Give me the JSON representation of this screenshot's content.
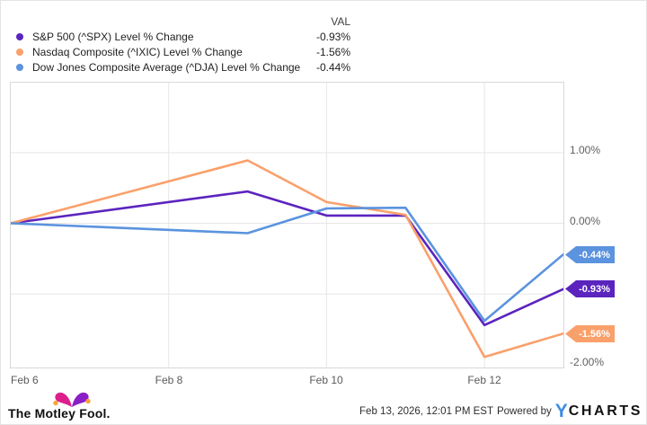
{
  "legend": {
    "val_header": "VAL",
    "series": [
      {
        "label": "S&P 500 (^SPX) Level % Change",
        "val": "-0.93%",
        "color": "#5B24BE"
      },
      {
        "label": "Nasdaq Composite (^IXIC) Level % Change",
        "val": "-1.56%",
        "color": "#FAA06B"
      },
      {
        "label": "Dow Jones Composite Average (^DJA) Level % Change",
        "val": "-0.44%",
        "color": "#5B93DE"
      }
    ]
  },
  "chart_data": {
    "type": "line",
    "title": "",
    "xlabel": "",
    "ylabel": "",
    "x": [
      "Feb 6",
      "Feb 9",
      "Feb 10",
      "Feb 11",
      "Feb 12",
      "Feb 13"
    ],
    "x_day_offsets": [
      0,
      3,
      4,
      5,
      6,
      7
    ],
    "x_total_days": 7,
    "series": [
      {
        "name": "S&P 500 (^SPX) Level % Change",
        "color": "#5B24BE",
        "values": [
          0,
          0.45,
          0.11,
          0.11,
          -1.44,
          -0.93
        ]
      },
      {
        "name": "Nasdaq Composite (^IXIC) Level % Change",
        "color": "#FAA06B",
        "values": [
          0,
          0.89,
          0.3,
          0.12,
          -1.89,
          -1.56
        ]
      },
      {
        "name": "Dow Jones Composite Average (^DJA) Level % Change",
        "color": "#5B93DE",
        "values": [
          0,
          -0.14,
          0.21,
          0.22,
          -1.38,
          -0.44
        ]
      }
    ],
    "ylim": [
      -2.04,
      1.99
    ],
    "grid": true,
    "legend_position": "top-left",
    "y_gridlines": [
      1,
      0,
      -1
    ],
    "y_tick_labels": [
      {
        "label": "1.00%",
        "value": 1
      },
      {
        "label": "0.00%",
        "value": 0
      },
      {
        "label": "-2.00%",
        "value": -2
      }
    ],
    "x_tick_labels": [
      {
        "label": "Feb 6",
        "day": 0
      },
      {
        "label": "Feb 8",
        "day": 2
      },
      {
        "label": "Feb 10",
        "day": 4
      },
      {
        "label": "Feb 12",
        "day": 6
      }
    ],
    "end_tags": [
      {
        "label": "-0.44%",
        "value": -0.44,
        "color": "#5B93DE"
      },
      {
        "label": "-0.93%",
        "value": -0.93,
        "color": "#5B24BE"
      },
      {
        "label": "-1.56%",
        "value": -1.56,
        "color": "#FAA06B"
      }
    ]
  },
  "footer": {
    "brand": "The Motley Fool.",
    "timestamp": "Feb 13, 2026, 12:01 PM EST",
    "powered_by": "Powered by",
    "ycharts_y": "Y",
    "ycharts_rest": "CHARTS"
  },
  "colors": {
    "gridline": "#e7e7e7",
    "plot_border": "#d9d9d9",
    "tick_text": "#5f5f5f",
    "hat_pink": "#DD1F8C",
    "hat_purple": "#8A1FC8",
    "hat_gold": "#F9A13C"
  }
}
